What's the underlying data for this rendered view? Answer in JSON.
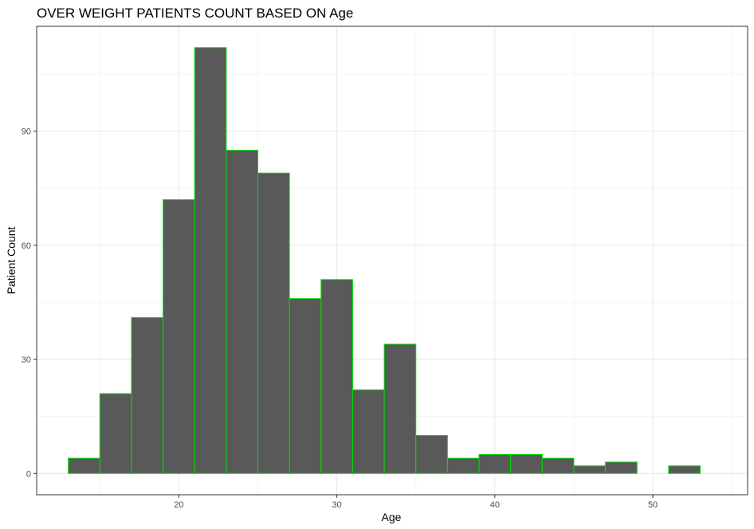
{
  "chart_data": {
    "type": "bar",
    "subtype": "histogram",
    "title": "OVER WEIGHT PATIENTS COUNT BASED ON Age",
    "xlabel": "Age",
    "ylabel": "Patient Count",
    "bin_width": 2,
    "bins": [
      {
        "x_start": 13,
        "x_end": 15,
        "count": 4
      },
      {
        "x_start": 15,
        "x_end": 17,
        "count": 21
      },
      {
        "x_start": 17,
        "x_end": 19,
        "count": 41
      },
      {
        "x_start": 19,
        "x_end": 21,
        "count": 72
      },
      {
        "x_start": 21,
        "x_end": 23,
        "count": 112
      },
      {
        "x_start": 23,
        "x_end": 25,
        "count": 85
      },
      {
        "x_start": 25,
        "x_end": 27,
        "count": 79
      },
      {
        "x_start": 27,
        "x_end": 29,
        "count": 46
      },
      {
        "x_start": 29,
        "x_end": 31,
        "count": 51
      },
      {
        "x_start": 31,
        "x_end": 33,
        "count": 22
      },
      {
        "x_start": 33,
        "x_end": 35,
        "count": 34
      },
      {
        "x_start": 35,
        "x_end": 37,
        "count": 10
      },
      {
        "x_start": 37,
        "x_end": 39,
        "count": 4
      },
      {
        "x_start": 39,
        "x_end": 41,
        "count": 5
      },
      {
        "x_start": 41,
        "x_end": 43,
        "count": 5
      },
      {
        "x_start": 43,
        "x_end": 45,
        "count": 4
      },
      {
        "x_start": 45,
        "x_end": 47,
        "count": 2
      },
      {
        "x_start": 47,
        "x_end": 49,
        "count": 3
      },
      {
        "x_start": 49,
        "x_end": 51,
        "count": 0
      },
      {
        "x_start": 51,
        "x_end": 53,
        "count": 2
      }
    ],
    "xlim": [
      11,
      56
    ],
    "ylim": [
      -5.6,
      117.6
    ],
    "x_ticks": [
      20,
      30,
      40,
      50
    ],
    "y_ticks": [
      0,
      30,
      60,
      90
    ],
    "grid": true,
    "legend": "none",
    "colors": {
      "bar_fill": "#595959",
      "bar_outline": "#00e000",
      "grid_major": "#ebebeb",
      "grid_minor": "#f5f5f5",
      "panel_border": "#333333"
    }
  }
}
